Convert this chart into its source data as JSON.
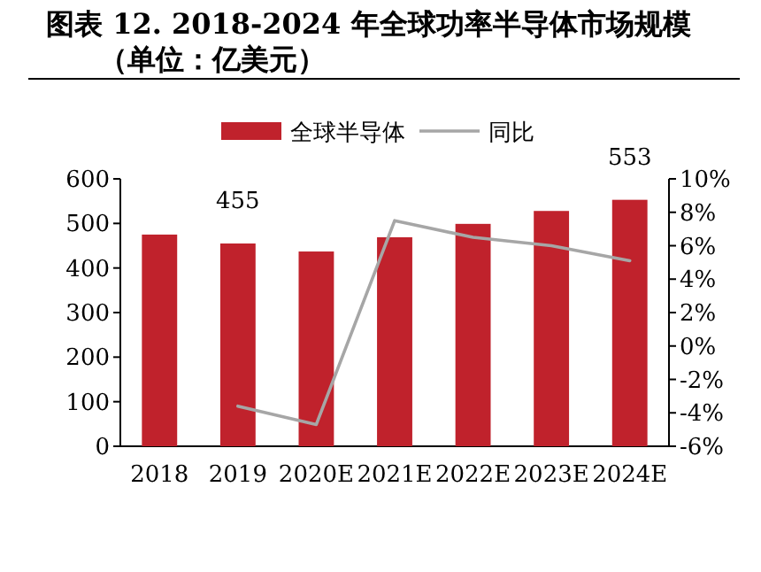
{
  "chart_data": {
    "type": "bar",
    "title": "图表 12. 2018-2024 年全球功率半导体市场规模（单位：亿美元）",
    "categories": [
      "2018",
      "2019",
      "2020E",
      "2021E",
      "2022E",
      "2023E",
      "2024E"
    ],
    "series": [
      {
        "name": "全球半导体",
        "color": "#c0222c",
        "values": [
          475,
          455,
          437,
          469,
          499,
          528,
          553
        ],
        "value_labels": [
          null,
          "455",
          null,
          null,
          null,
          null,
          "553"
        ]
      },
      {
        "name": "同比",
        "type": "line",
        "axis": "y2",
        "color": "#a6a6a6",
        "values": [
          null,
          -3.6,
          -4.7,
          7.5,
          6.5,
          6.0,
          5.1
        ]
      }
    ],
    "ylim": [
      0,
      600
    ],
    "yticks": [
      0,
      100,
      200,
      300,
      400,
      500,
      600
    ],
    "y2lim": [
      -6,
      10
    ],
    "y2ticks": [
      {
        "value": -6,
        "label": "-6%"
      },
      {
        "value": -4,
        "label": "-4%"
      },
      {
        "value": -2,
        "label": "-2%"
      },
      {
        "value": 0,
        "label": "0%"
      },
      {
        "value": 2,
        "label": "2%"
      },
      {
        "value": 4,
        "label": "4%"
      },
      {
        "value": 6,
        "label": "6%"
      },
      {
        "value": 8,
        "label": "8%"
      },
      {
        "value": 10,
        "label": "10%"
      }
    ],
    "legend": "top"
  }
}
